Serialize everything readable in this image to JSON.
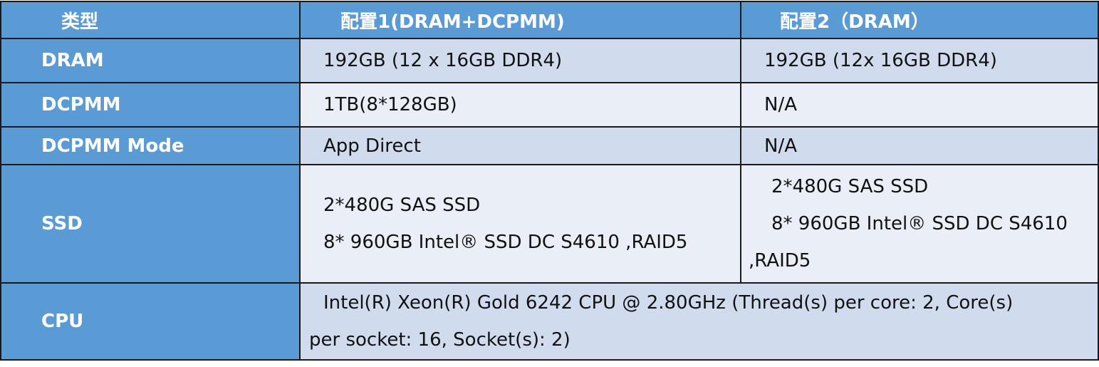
{
  "colors": {
    "header_bg": "#5b9bd5",
    "row_dark": "#d0dcee",
    "row_light": "#e9eef7"
  },
  "header": {
    "col0": "类型",
    "col1": "配置1(DRAM+DCPMM)",
    "col2": "配置2（DRAM）"
  },
  "rows": [
    {
      "label": "DRAM",
      "c1": "192GB (12 x 16GB DDR4)",
      "c2": "192GB (12x 16GB DDR4)"
    },
    {
      "label": "DCPMM",
      "c1": "1TB(8*128GB)",
      "c2": "N/A"
    },
    {
      "label": "DCPMM Mode",
      "c1": "App Direct",
      "c2": "N/A"
    },
    {
      "label": "SSD",
      "c1": [
        "2*480G SAS SSD",
        "8* 960GB Intel® SSD DC S4610 ,RAID5"
      ],
      "c2": [
        "2*480G SAS SSD",
        "8* 960GB Intel® SSD DC S4610",
        ",RAID5"
      ]
    },
    {
      "label": "CPU",
      "c1": [
        "Intel(R) Xeon(R) Gold 6242 CPU @ 2.80GHz (Thread(s) per core: 2, Core(s)",
        "per socket: 16, Socket(s): 2)"
      ]
    }
  ]
}
